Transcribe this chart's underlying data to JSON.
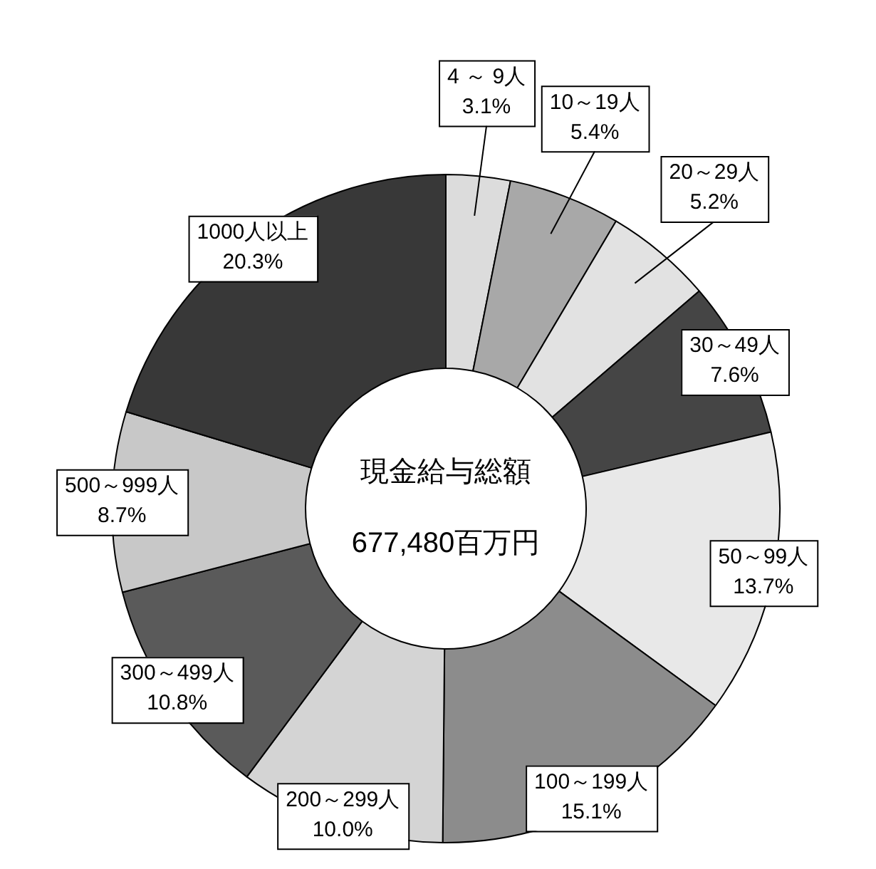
{
  "chart_data": {
    "type": "donut",
    "categories": [
      "4 ～ 9人",
      "10～19人",
      "20～29人",
      "30～49人",
      "50～99人",
      "100～199人",
      "200～299人",
      "300～499人",
      "500～999人",
      "1000人以上"
    ],
    "values": [
      3.1,
      5.4,
      5.2,
      7.6,
      13.7,
      15.1,
      10.0,
      10.8,
      8.7,
      20.3
    ],
    "value_labels": [
      "3.1%",
      "5.4%",
      "5.2%",
      "7.6%",
      "13.7%",
      "15.1%",
      "10.0%",
      "10.8%",
      "8.7%",
      "20.3%"
    ],
    "colors": [
      "#dcdcdc",
      "#a8a8a8",
      "#e2e2e2",
      "#454545",
      "#e8e8e8",
      "#8c8c8c",
      "#d4d4d4",
      "#5a5a5a",
      "#c8c8c8",
      "#383838"
    ],
    "annotations": [
      "現金給与総額",
      "677,480百万円"
    ],
    "legend": false
  }
}
